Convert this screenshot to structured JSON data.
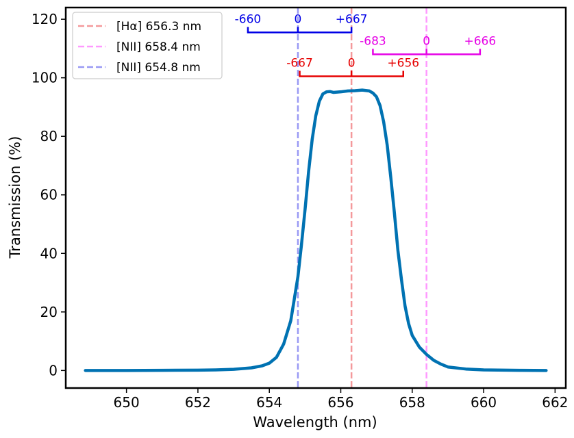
{
  "chart_data": {
    "type": "line",
    "xlabel": "Wavelength (nm)",
    "ylabel": "Transmission (%)",
    "xlim": [
      648.3,
      662.3
    ],
    "ylim": [
      -6,
      124
    ],
    "xticks": [
      650,
      652,
      654,
      656,
      658,
      660,
      662
    ],
    "yticks": [
      0,
      20,
      40,
      60,
      80,
      100,
      120
    ],
    "legend_position": "top-left",
    "series": [
      {
        "color": "#0072b2",
        "x": [
          648.85,
          650,
          651,
          652,
          652.5,
          653,
          653.5,
          653.8,
          654,
          654.2,
          654.4,
          654.6,
          654.8,
          654.9,
          655.0,
          655.1,
          655.2,
          655.3,
          655.4,
          655.5,
          655.6,
          655.7,
          655.8,
          656.0,
          656.2,
          656.4,
          656.6,
          656.8,
          656.9,
          657.0,
          657.1,
          657.2,
          657.3,
          657.4,
          657.5,
          657.6,
          657.7,
          657.8,
          657.9,
          658.0,
          658.2,
          658.4,
          658.6,
          658.8,
          659.0,
          659.5,
          660,
          661,
          661.75
        ],
        "y": [
          0,
          0,
          0.05,
          0.1,
          0.2,
          0.4,
          0.9,
          1.6,
          2.5,
          4.5,
          9,
          17,
          32,
          43,
          55,
          68,
          79,
          87,
          92,
          94.5,
          95.2,
          95.3,
          95,
          95.2,
          95.5,
          95.6,
          95.8,
          95.5,
          94.8,
          93.5,
          90.5,
          85,
          77,
          66,
          54,
          41,
          31,
          22,
          16,
          12,
          8,
          5.5,
          3.5,
          2.2,
          1.2,
          0.5,
          0.2,
          0.05,
          0
        ]
      }
    ],
    "vlines": [
      {
        "x": 656.3,
        "color": "#f4999b",
        "label": "[Hα] 656.3 nm"
      },
      {
        "x": 658.4,
        "color": "#ff99ff",
        "label": "[NII] 658.4 nm"
      },
      {
        "x": 654.8,
        "color": "#9999f4",
        "label": "[NII] 654.8 nm"
      }
    ],
    "brackets": [
      {
        "color": "#0000e6",
        "center": 654.8,
        "left": 653.4,
        "right": 656.3,
        "y_data": 115.5,
        "labels": [
          "-660",
          "0",
          "+667"
        ]
      },
      {
        "color": "#e600e6",
        "center": 658.4,
        "left": 656.9,
        "right": 659.9,
        "y_data": 108,
        "labels": [
          "-683",
          "0",
          "+666"
        ]
      },
      {
        "color": "#e60000",
        "center": 656.3,
        "left": 654.85,
        "right": 657.75,
        "y_data": 100.5,
        "labels": [
          "-667",
          "0",
          "+656"
        ]
      }
    ]
  }
}
